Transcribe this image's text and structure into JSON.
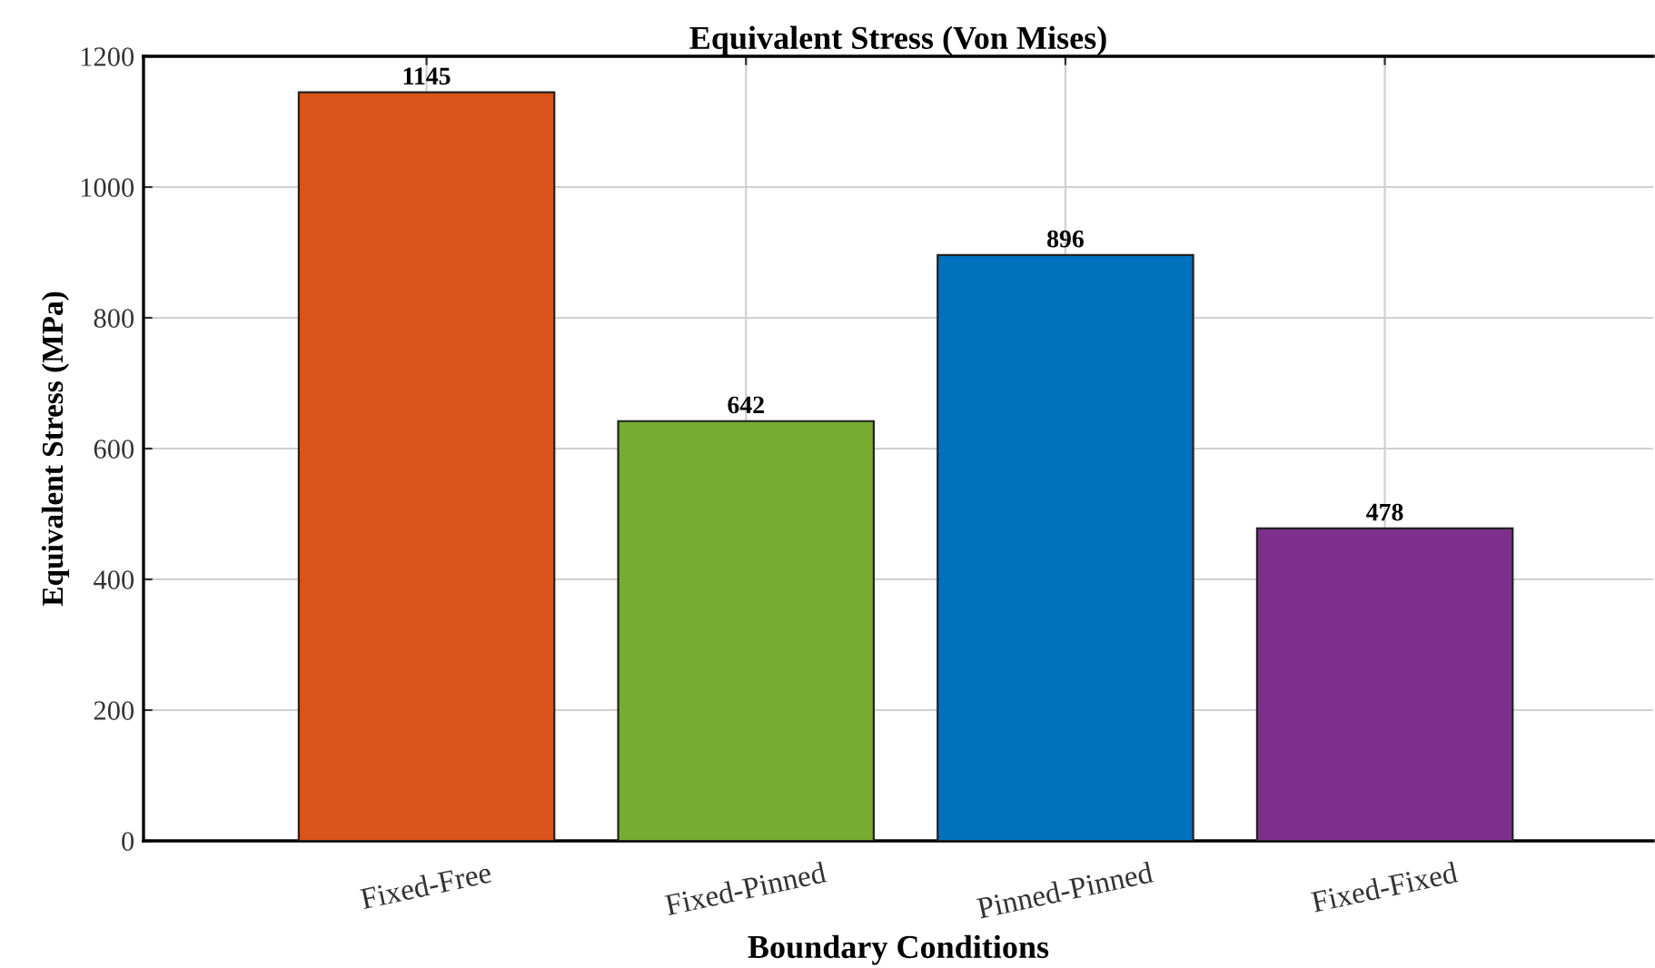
{
  "chart_data": {
    "type": "bar",
    "title": "Equivalent Stress (Von Mises)",
    "xlabel": "Boundary Conditions",
    "ylabel": "Equivalent Stress (MPa)",
    "categories": [
      "Fixed-Free",
      "Fixed-Pinned",
      "Pinned-Pinned",
      "Fixed-Fixed"
    ],
    "values": [
      1145,
      642,
      896,
      478
    ],
    "colors": [
      "#d9541a",
      "#77ac30",
      "#0072bd",
      "#7e2f8e"
    ],
    "ylim": [
      0,
      1200
    ],
    "yticks": [
      0,
      200,
      400,
      600,
      800,
      1000,
      1200
    ],
    "grid": true,
    "data_labels": true
  }
}
